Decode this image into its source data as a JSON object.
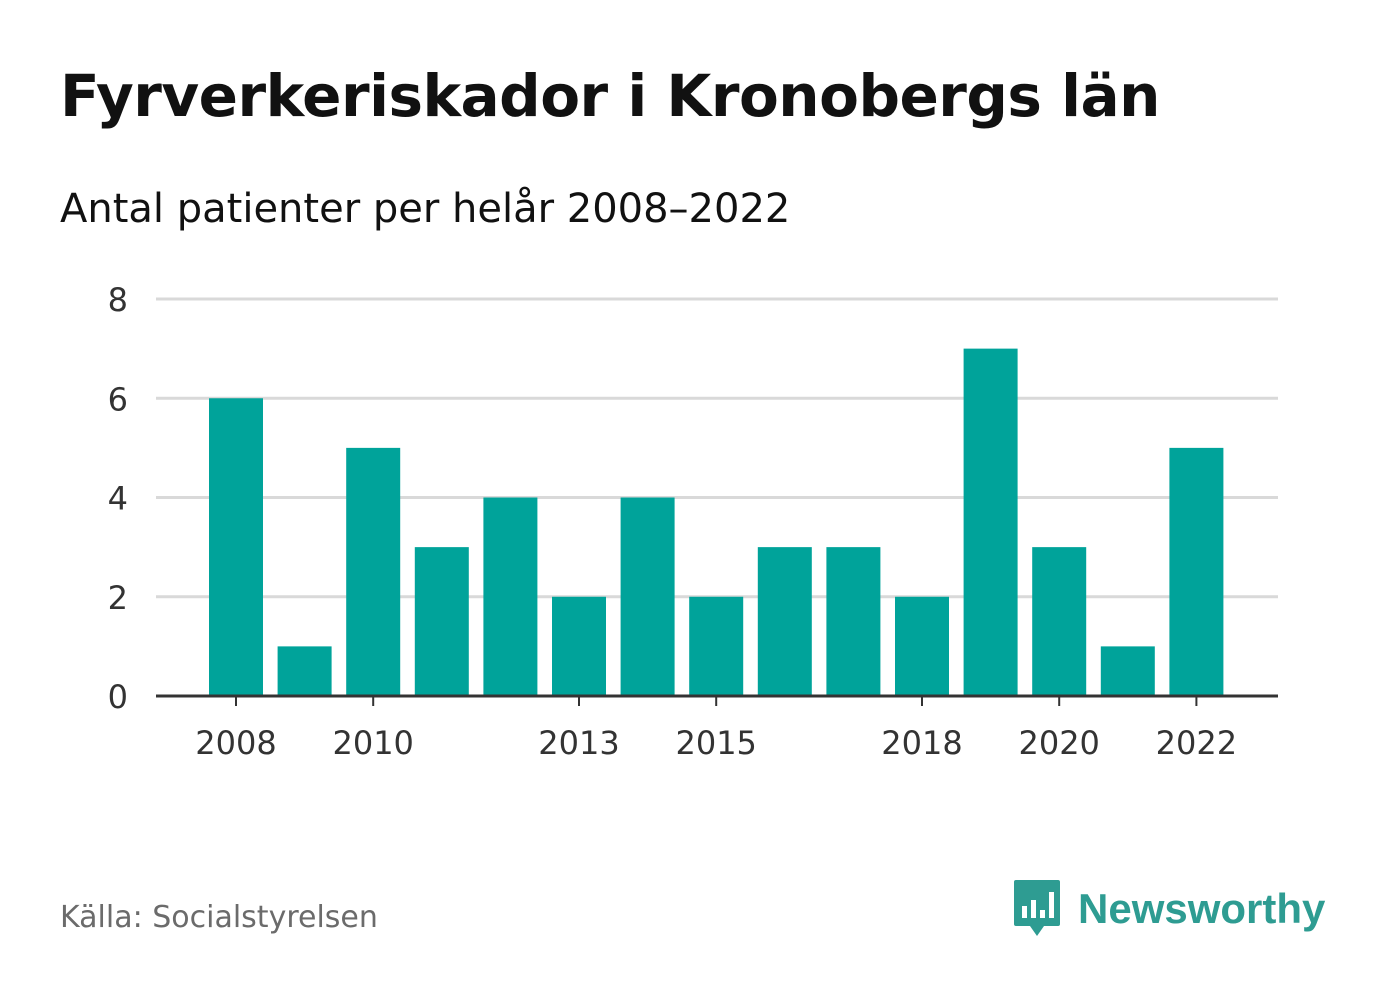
{
  "header": {
    "title": "Fyrverkeriskador i Kronobergs län",
    "subtitle": "Antal patienter per helår 2008–2022"
  },
  "footer": {
    "source": "Källa: Socialstyrelsen",
    "brand": "Newsworthy",
    "brand_icon": "bar-chart-speech-bubble-icon"
  },
  "colors": {
    "bar": "#00a39a",
    "grid": "#d9d9d9",
    "axis": "#333333",
    "brand": "#2e9c92"
  },
  "chart_data": {
    "type": "bar",
    "categories": [
      "2008",
      "2009",
      "2010",
      "2011",
      "2012",
      "2013",
      "2014",
      "2015",
      "2016",
      "2017",
      "2018",
      "2019",
      "2020",
      "2021",
      "2022"
    ],
    "values": [
      6,
      1,
      5,
      3,
      4,
      2,
      4,
      2,
      3,
      3,
      2,
      7,
      3,
      1,
      5
    ],
    "x_tick_labels": [
      "2008",
      "2010",
      "2013",
      "2015",
      "2018",
      "2020",
      "2022"
    ],
    "y_ticks": [
      0,
      2,
      4,
      6,
      8
    ],
    "ylim": [
      0,
      8
    ],
    "grid": true,
    "legend": "none"
  }
}
